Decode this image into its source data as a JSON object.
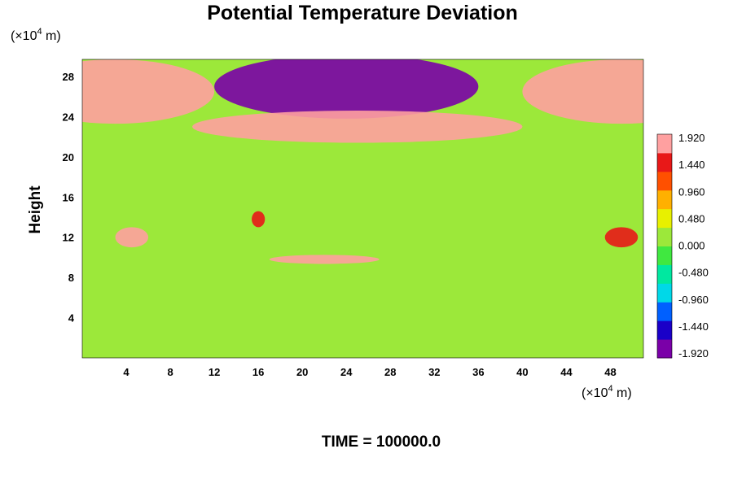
{
  "chart_data": {
    "type": "heatmap",
    "title": "Potential Temperature Deviation",
    "ylabel": "Height",
    "x_unit_prefix": "(×10",
    "x_unit_exp": "4",
    "x_unit_suffix": " m)",
    "y_unit_prefix": "(×10",
    "y_unit_exp": "4",
    "y_unit_suffix": " m)",
    "x_ticks": [
      "4",
      "8",
      "12",
      "16",
      "20",
      "24",
      "28",
      "32",
      "36",
      "40",
      "44",
      "48"
    ],
    "y_ticks": [
      "4",
      "8",
      "12",
      "16",
      "20",
      "24",
      "28"
    ],
    "xlim": [
      0,
      51
    ],
    "ylim": [
      0,
      29.7
    ],
    "colorbar_ticks": [
      "1.920",
      "1.440",
      "0.960",
      "0.480",
      "0.000",
      "-0.480",
      "-0.960",
      "-1.440",
      "-1.920"
    ],
    "colorbar_range": [
      -1.92,
      1.92
    ],
    "colorbar_colors": [
      "#7a00a8",
      "#1a00c8",
      "#0060ff",
      "#00d8e8",
      "#00e8a0",
      "#40e840",
      "#9ce83a",
      "#e8f000",
      "#ffb000",
      "#ff5000",
      "#e81818",
      "#ffa0a0"
    ],
    "time_label": "TIME = 100000.0",
    "features": [
      {
        "desc": "warm anomaly upper left",
        "x": 3,
        "y": 26.5,
        "rx": 9,
        "ry": 3.2,
        "value": 1.9
      },
      {
        "desc": "cold anomaly upper center",
        "x": 24,
        "y": 27,
        "rx": 12,
        "ry": 3.2,
        "value": -1.9
      },
      {
        "desc": "warm anomaly upper right",
        "x": 49,
        "y": 26.5,
        "rx": 9,
        "ry": 3.2,
        "value": 1.9
      },
      {
        "desc": "warm band center",
        "x": 25,
        "y": 23,
        "rx": 15,
        "ry": 1.6,
        "value": 1.95
      },
      {
        "desc": "warm patch left",
        "x": 4.5,
        "y": 12,
        "rx": 1.5,
        "ry": 1,
        "value": 1.9
      },
      {
        "desc": "warm patch center",
        "x": 16,
        "y": 13.8,
        "rx": 0.6,
        "ry": 0.8,
        "value": 1.5
      },
      {
        "desc": "warm streak center",
        "x": 22,
        "y": 9.8,
        "rx": 5,
        "ry": 0.45,
        "value": 1.9
      },
      {
        "desc": "warm patch right",
        "x": 49,
        "y": 12,
        "rx": 1.5,
        "ry": 1,
        "value": 1.4
      }
    ]
  }
}
